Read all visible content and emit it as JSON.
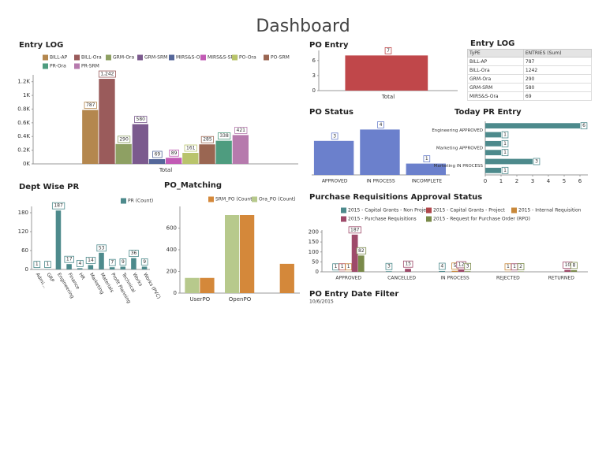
{
  "title": "Dashboard",
  "entry_log_table": {
    "title": "Entry LOG",
    "header": [
      "TyPE",
      "ENTRIES (Sum)"
    ],
    "rows": [
      [
        "BILL-AP",
        "787"
      ],
      [
        "BILL-Ora",
        "1242"
      ],
      [
        "GRM-Ora",
        "290"
      ],
      [
        "GRM-SRM",
        "580"
      ],
      [
        "MIRS&S-Ora",
        "69"
      ]
    ]
  },
  "date_filter": {
    "title": "PO Entry Date Filter",
    "date": "10/6/2015"
  },
  "chart_data": [
    {
      "type": "bar",
      "title": "Entry LOG",
      "categories": [
        "Total"
      ],
      "series": [
        {
          "name": "BILL-AP",
          "color": "#b4874e",
          "values": [
            787
          ]
        },
        {
          "name": "BILL-Ora",
          "color": "#9a5b5b",
          "values": [
            1242
          ],
          "value_labels": [
            "1,242"
          ]
        },
        {
          "name": "GRM-Ora",
          "color": "#8ea063",
          "values": [
            290
          ]
        },
        {
          "name": "GRM-SRM",
          "color": "#7b5a8e",
          "values": [
            580
          ]
        },
        {
          "name": "MIRS&S-Ora",
          "color": "#55679a",
          "values": [
            69
          ]
        },
        {
          "name": "MIRS&S-SRM",
          "color": "#c25bb5",
          "values": [
            89
          ]
        },
        {
          "name": "PO-Ora",
          "color": "#b9c46b",
          "values": [
            161
          ]
        },
        {
          "name": "PO-SRM",
          "color": "#9a6652",
          "values": [
            285
          ]
        },
        {
          "name": "PR-Ora",
          "color": "#4e9c7f",
          "values": [
            338
          ]
        },
        {
          "name": "PR-SRM",
          "color": "#b67aad",
          "values": [
            421
          ]
        }
      ],
      "ylim": [
        0,
        1300
      ],
      "yticks": [
        {
          "value": 0,
          "label": "0K"
        },
        {
          "value": 200,
          "label": "0.2K"
        },
        {
          "value": 400,
          "label": "0.4K"
        },
        {
          "value": 600,
          "label": "0.6K"
        },
        {
          "value": 800,
          "label": "0.8K"
        },
        {
          "value": 1000,
          "label": "1K"
        },
        {
          "value": 1200,
          "label": "1.2K"
        }
      ]
    },
    {
      "type": "bar",
      "title": "PO Entry",
      "categories": [
        "Total"
      ],
      "values": [
        7
      ],
      "color": "#c0474a",
      "ylim": [
        0,
        8
      ],
      "yticks": [
        0,
        3,
        6
      ]
    },
    {
      "type": "bar",
      "title": "PO Status",
      "categories": [
        "APPROVED",
        "IN PROCESS",
        "INCOMPLETE"
      ],
      "values": [
        3,
        4,
        1
      ],
      "color": "#6b80cc",
      "ylim": [
        0,
        5
      ]
    },
    {
      "type": "barh",
      "title": "Today PR  Entry",
      "categories": [
        "Engineering APPROVED",
        null,
        "Marketing APPROVED",
        null,
        "Marketing IN PROCESS",
        null
      ],
      "values": [
        6,
        1,
        1,
        1,
        3,
        1
      ],
      "color": "#4d8a8c",
      "xlim": [
        0,
        6.5
      ],
      "xticks": [
        0,
        1,
        2,
        3,
        4,
        5,
        6
      ]
    },
    {
      "type": "bar",
      "title": "Dept Wise PR",
      "categories": [
        "Admi...",
        "GRP",
        "Engineering",
        "Finance",
        "HR",
        "Marketing",
        "Materials",
        "Profit Planning",
        "Technical",
        "Works",
        "Works (PVC)"
      ],
      "series": [
        {
          "name": "PR (Count)",
          "color": "#4d8a8c",
          "values": [
            1,
            1,
            187,
            17,
            4,
            14,
            53,
            7,
            9,
            36,
            9
          ]
        }
      ],
      "ylim": [
        0,
        200
      ],
      "yticks": [
        0,
        60,
        120,
        180
      ]
    },
    {
      "type": "bar",
      "title": "PO_Matching",
      "categories": [
        "UserPO",
        "OpenPO",
        null
      ],
      "series": [
        {
          "name": "SRM_PO (Count)",
          "color": "#d4883a",
          "values": [
            140,
            720,
            270
          ]
        },
        {
          "name": "Ora_PO (Count)",
          "color": "#b7c98c",
          "values": [
            140,
            720,
            null
          ]
        }
      ],
      "ylim": [
        0,
        800
      ],
      "yticks": [
        0,
        200,
        400,
        600
      ]
    },
    {
      "type": "bar",
      "title": "Purchase Requisitions Approval Status",
      "categories": [
        "APPROVED",
        "CANCELLED",
        "IN PROCESS",
        "REJECTED",
        "RETURNED"
      ],
      "series": [
        {
          "name": "2015 - Capital Grants - Non Project",
          "color": "#4d8a8c",
          "values": [
            1,
            3,
            4,
            null,
            null
          ]
        },
        {
          "name": "2015 - Capital Grants - Project",
          "color": "#b0464a",
          "values": [
            1,
            null,
            null,
            null,
            null
          ]
        },
        {
          "name": "2015 - Internal Requisition",
          "color": "#c8883a",
          "values": [
            1,
            null,
            5,
            1,
            null
          ]
        },
        {
          "name": "2015 - Purchase Requisitions",
          "color": "#9e4a6a",
          "values": [
            187,
            15,
            12,
            1,
            10
          ]
        },
        {
          "name": "2015 - Request for Purchase Order (RPO)",
          "color": "#7a8a4a",
          "values": [
            82,
            null,
            3,
            2,
            8
          ]
        }
      ],
      "ylim": [
        0,
        210
      ],
      "yticks": [
        0,
        50,
        100,
        150,
        200
      ]
    }
  ]
}
